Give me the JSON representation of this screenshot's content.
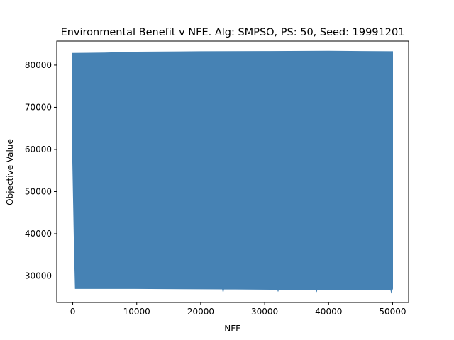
{
  "chart_data": {
    "type": "area",
    "title": "Environmental Benefit v NFE. Alg: SMPSO, PS: 50, Seed: 19991201",
    "xlabel": "NFE",
    "ylabel": "Objective Value",
    "xlim": [
      -2500,
      52500
    ],
    "ylim": [
      23700,
      85700
    ],
    "xticks": [
      0,
      10000,
      20000,
      30000,
      40000,
      50000
    ],
    "yticks": [
      30000,
      40000,
      50000,
      60000,
      70000,
      80000
    ],
    "grid": false,
    "color": "#4682b4",
    "series": [
      {
        "upper": [
          [
            0,
            82800
          ],
          [
            5000,
            82900
          ],
          [
            10000,
            83100
          ],
          [
            20000,
            83200
          ],
          [
            30000,
            83250
          ],
          [
            40000,
            83300
          ],
          [
            50000,
            83200
          ]
        ],
        "lower": [
          [
            0,
            57000
          ],
          [
            250,
            36500
          ],
          [
            400,
            27000
          ],
          [
            9700,
            27000
          ],
          [
            9750,
            28700
          ],
          [
            9800,
            27000
          ],
          [
            23400,
            26900
          ],
          [
            23500,
            26200
          ],
          [
            23600,
            26900
          ],
          [
            32000,
            26800
          ],
          [
            32100,
            26400
          ],
          [
            32200,
            26800
          ],
          [
            38000,
            26800
          ],
          [
            38100,
            26200
          ],
          [
            38200,
            26800
          ],
          [
            49700,
            26800
          ],
          [
            49800,
            26100
          ],
          [
            50000,
            27000
          ]
        ]
      }
    ]
  }
}
